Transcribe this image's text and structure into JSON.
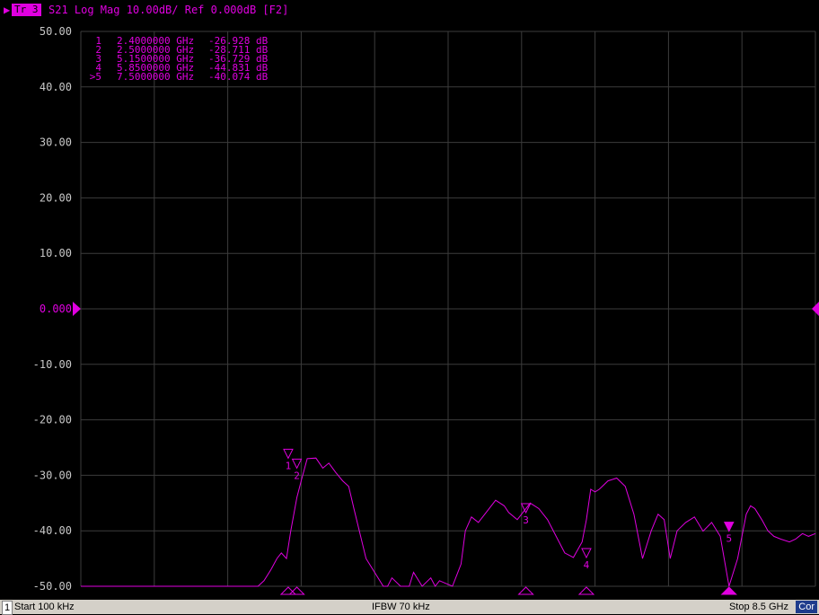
{
  "header": {
    "trace_badge": "Tr 3",
    "trace_title": "S21 Log Mag 10.00dB/ Ref 0.000dB [F2]"
  },
  "footer": {
    "channel": "1",
    "start": "Start 100 kHz",
    "ifbw": "IFBW 70 kHz",
    "stop": "Stop 8.5 GHz",
    "cor": "Cor"
  },
  "colors": {
    "trace": "#e000e0",
    "grid": "#3c3c3c",
    "axis_text": "#c8c8c8",
    "background": "#000000"
  },
  "chart_data": {
    "type": "line",
    "xlabel": "",
    "ylabel": "",
    "x_unit": "GHz",
    "xlim": [
      0.0001,
      8.5
    ],
    "ylim": [
      -50,
      50
    ],
    "y_ticks": [
      "50.00",
      "40.00",
      "30.00",
      "20.00",
      "10.00",
      "0.000",
      "-10.00",
      "-20.00",
      "-30.00",
      "-40.00",
      "-50.00"
    ],
    "reference_label": "0.000",
    "grid": true,
    "series": [
      {
        "x": [
          0.0001,
          0.6,
          1.2,
          2.0,
          2.05,
          2.12,
          2.2,
          2.27,
          2.32,
          2.38,
          2.43,
          2.5,
          2.55,
          2.62,
          2.72,
          2.8,
          2.87,
          2.95,
          3.03,
          3.1,
          3.16,
          3.3,
          3.5,
          3.55,
          3.6,
          3.7,
          3.8,
          3.85,
          3.95,
          4.05,
          4.1,
          4.15,
          4.3,
          4.4,
          4.45,
          4.52,
          4.6,
          4.7,
          4.8,
          4.9,
          4.95,
          5.05,
          5.1,
          5.2,
          5.3,
          5.4,
          5.5,
          5.6,
          5.7,
          5.8,
          5.85,
          5.9,
          5.95,
          6.0,
          6.1,
          6.2,
          6.3,
          6.4,
          6.5,
          6.6,
          6.68,
          6.75,
          6.82,
          6.9,
          7.0,
          7.1,
          7.2,
          7.3,
          7.4,
          7.5,
          7.6,
          7.7,
          7.75,
          7.8,
          7.88,
          7.95,
          8.02,
          8.1,
          8.2,
          8.27,
          8.35,
          8.42,
          8.5
        ],
        "y": [
          -50,
          -50,
          -50,
          -50,
          -50,
          -49,
          -47,
          -45,
          -44,
          -45,
          -40,
          -34,
          -31,
          -27,
          -26.9,
          -28.7,
          -27.8,
          -29.5,
          -31,
          -32,
          -36,
          -45,
          -50,
          -50,
          -48.5,
          -50,
          -50,
          -47.5,
          -50,
          -48.5,
          -50,
          -49,
          -50,
          -46,
          -40,
          -37.5,
          -38.5,
          -36.5,
          -34.5,
          -35.5,
          -36.7,
          -38,
          -37,
          -35,
          -36,
          -38,
          -41,
          -44,
          -44.8,
          -42,
          -38,
          -32.5,
          -33,
          -32.5,
          -31,
          -30.5,
          -32,
          -37,
          -45,
          -40,
          -37,
          -38,
          -45,
          -40,
          -38.5,
          -37.5,
          -40.07,
          -38.5,
          -41,
          -50,
          -45,
          -37,
          -35.5,
          -36,
          -38,
          -40,
          -41,
          -41.5,
          -42,
          -41.5,
          -40.5,
          -41,
          -40.5
        ]
      }
    ],
    "markers": [
      {
        "id": "1",
        "prefix": "",
        "x": 2.4,
        "x_label": "2.4000000 GHz",
        "value": -26.928,
        "value_label": "-26.928 dB"
      },
      {
        "id": "2",
        "prefix": "",
        "x": 2.5,
        "x_label": "2.5000000 GHz",
        "value": -28.711,
        "value_label": "-28.711 dB"
      },
      {
        "id": "3",
        "prefix": "",
        "x": 5.15,
        "x_label": "5.1500000 GHz",
        "value": -36.729,
        "value_label": "-36.729 dB"
      },
      {
        "id": "4",
        "prefix": "",
        "x": 5.85,
        "x_label": "5.8500000 GHz",
        "value": -44.831,
        "value_label": "-44.831 dB"
      },
      {
        "id": "5",
        "prefix": ">",
        "x": 7.5,
        "x_label": "7.5000000 GHz",
        "value": -40.074,
        "value_label": "-40.074 dB"
      }
    ],
    "active_marker": "5",
    "unit": "GHz",
    "value_unit": "dB"
  }
}
